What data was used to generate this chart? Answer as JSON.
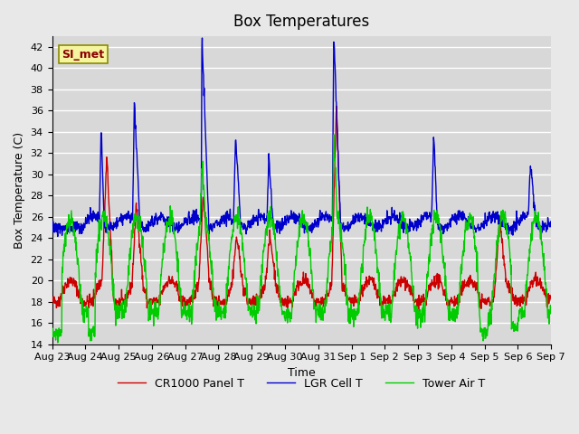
{
  "title": "Box Temperatures",
  "xlabel": "Time",
  "ylabel": "Box Temperature (C)",
  "ylim": [
    14,
    43
  ],
  "yticks": [
    14,
    16,
    18,
    20,
    22,
    24,
    26,
    28,
    30,
    32,
    34,
    36,
    38,
    40,
    42
  ],
  "line_colors": {
    "panel": "#cc0000",
    "lgr": "#0000cc",
    "tower": "#00cc00"
  },
  "legend_labels": [
    "CR1000 Panel T",
    "LGR Cell T",
    "Tower Air T"
  ],
  "annotation_text": "SI_met",
  "bg_color": "#e8e8e8",
  "plot_bg_color": "#d8d8d8",
  "grid_color": "#ffffff",
  "figsize": [
    6.4,
    4.8
  ],
  "dpi": 100
}
